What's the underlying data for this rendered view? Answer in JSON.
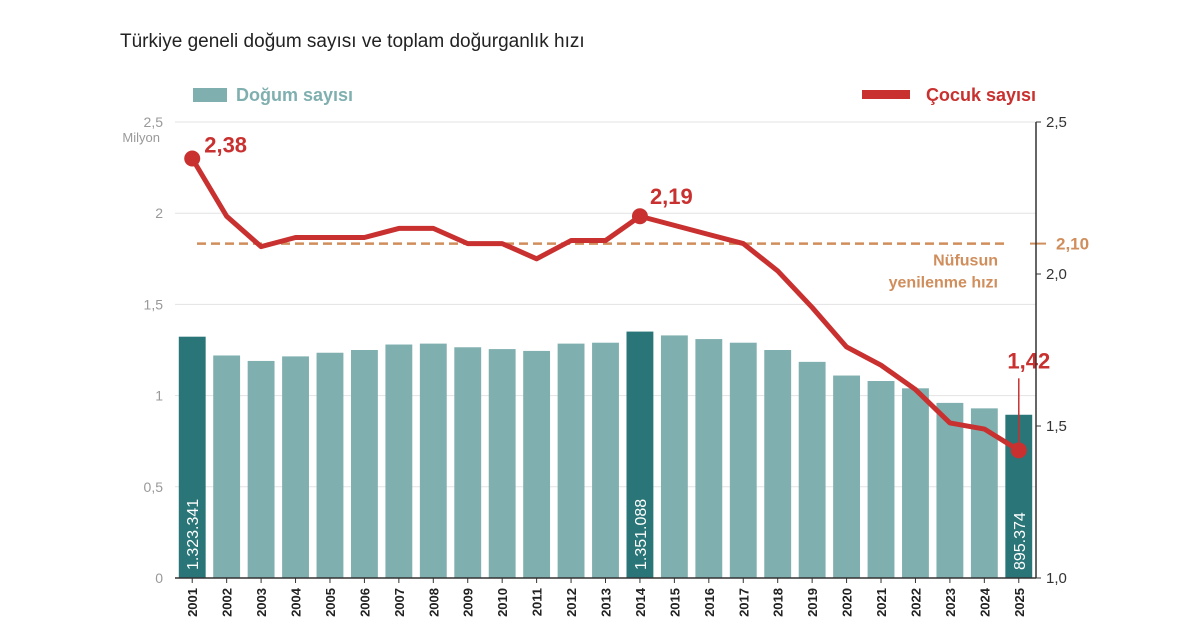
{
  "chart_data": {
    "type": "bar+line",
    "title": "Türkiye geneli doğum sayısı ve toplam doğurganlık hızı",
    "categories": [
      "2001",
      "2002",
      "2003",
      "2004",
      "2005",
      "2006",
      "2007",
      "2008",
      "2009",
      "2010",
      "2011",
      "2012",
      "2013",
      "2014",
      "2015",
      "2016",
      "2017",
      "2018",
      "2019",
      "2020",
      "2021",
      "2022",
      "2023",
      "2024",
      "2025"
    ],
    "left_axis": {
      "unit": "Milyon",
      "ylim": [
        0,
        2.5
      ],
      "ticks": [
        0,
        0.5,
        1,
        1.5,
        2,
        2.5
      ],
      "tick_labels": [
        "0",
        "0,5",
        "1",
        "1,5",
        "2",
        "2,5"
      ]
    },
    "right_axis": {
      "ylim": [
        1.0,
        2.5
      ],
      "ticks": [
        1.0,
        1.5,
        2.0,
        2.5
      ],
      "tick_labels": [
        "1,0",
        "1,5",
        "2,0",
        "2,5"
      ]
    },
    "series": [
      {
        "name": "Doğum sayısı",
        "kind": "bar",
        "axis": "left",
        "values": [
          1.323,
          1.22,
          1.19,
          1.215,
          1.235,
          1.25,
          1.28,
          1.285,
          1.265,
          1.255,
          1.245,
          1.285,
          1.29,
          1.351,
          1.33,
          1.31,
          1.29,
          1.25,
          1.185,
          1.11,
          1.08,
          1.04,
          0.96,
          0.93,
          0.895
        ],
        "highlight_indices": [
          0,
          13,
          24
        ],
        "bar_labels": [
          {
            "index": 0,
            "text": "1.323.341"
          },
          {
            "index": 13,
            "text": "1.351.088"
          },
          {
            "index": 24,
            "text": "895.374"
          }
        ]
      },
      {
        "name": "Çocuk sayısı",
        "kind": "line",
        "axis": "right",
        "values": [
          2.38,
          2.19,
          2.09,
          2.12,
          2.12,
          2.12,
          2.15,
          2.15,
          2.1,
          2.1,
          2.05,
          2.11,
          2.11,
          2.19,
          2.16,
          2.13,
          2.1,
          2.01,
          1.89,
          1.76,
          1.7,
          1.62,
          1.51,
          1.49,
          1.42
        ],
        "point_labels": [
          {
            "index": 0,
            "text": "2,38"
          },
          {
            "index": 13,
            "text": "2,19"
          },
          {
            "index": 24,
            "text": "1,42"
          }
        ]
      }
    ],
    "reference_line": {
      "value": 2.1,
      "axis": "right",
      "value_label": "2,10",
      "label_lines": [
        "Nüfusun",
        "yenilenme hızı"
      ]
    },
    "grid": true,
    "legend": {
      "bar_label": "Doğum sayısı",
      "line_label": "Çocuk sayısı",
      "placement": "top"
    },
    "colors": {
      "bar": "#80afb0",
      "bar_highlight": "#2a7577",
      "line": "#c8312f",
      "reference": "#d08e5c",
      "grid": "#e3e3e3",
      "axis_text": "#666666",
      "title": "#222222",
      "bar_label_text": "#ffffff"
    }
  }
}
